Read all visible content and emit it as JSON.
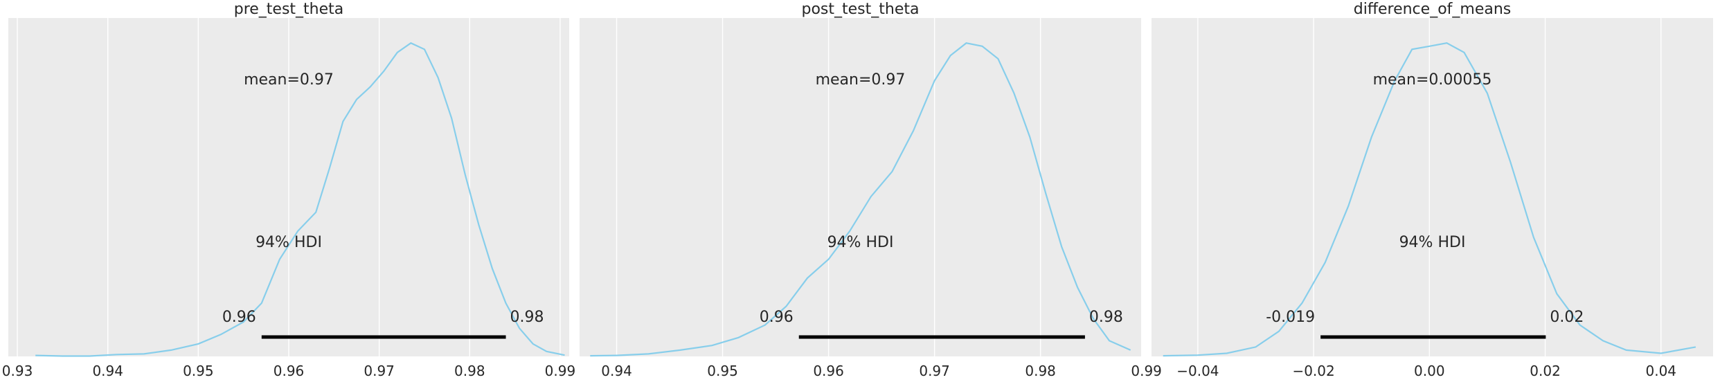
{
  "chart_data": [
    {
      "type": "line",
      "title": "pre_test_theta",
      "xlim": [
        0.929,
        0.991
      ],
      "ylim": [
        0,
        1.08
      ],
      "xticks": [
        0.93,
        0.94,
        0.95,
        0.96,
        0.97,
        0.98,
        0.99
      ],
      "xtick_labels": [
        "0.93",
        "0.94",
        "0.95",
        "0.96",
        "0.97",
        "0.98",
        "0.99"
      ],
      "x": [
        0.932,
        0.935,
        0.938,
        0.941,
        0.944,
        0.947,
        0.95,
        0.9525,
        0.955,
        0.957,
        0.959,
        0.961,
        0.963,
        0.9645,
        0.966,
        0.9675,
        0.969,
        0.9705,
        0.972,
        0.9735,
        0.975,
        0.9765,
        0.978,
        0.9795,
        0.981,
        0.9825,
        0.984,
        0.9855,
        0.987,
        0.9885,
        0.9905
      ],
      "y": [
        0.003,
        0.001,
        0.001,
        0.006,
        0.008,
        0.02,
        0.04,
        0.07,
        0.11,
        0.17,
        0.31,
        0.4,
        0.46,
        0.6,
        0.75,
        0.82,
        0.86,
        0.91,
        0.97,
        1.0,
        0.98,
        0.89,
        0.76,
        0.58,
        0.42,
        0.28,
        0.17,
        0.09,
        0.04,
        0.016,
        0.004
      ],
      "mean_label": "mean=0.97",
      "hdi_label": "94% HDI",
      "hdi": [
        0.957,
        0.984
      ],
      "hdi_low_label": "0.96",
      "hdi_high_label": "0.98",
      "line_color": "#87ceeb"
    },
    {
      "type": "line",
      "title": "post_test_theta",
      "xlim": [
        0.9365,
        0.9895
      ],
      "ylim": [
        0,
        1.08
      ],
      "xticks": [
        0.94,
        0.95,
        0.96,
        0.97,
        0.98,
        0.99
      ],
      "xtick_labels": [
        "0.94",
        "0.95",
        "0.96",
        "0.97",
        "0.98",
        "0.99"
      ],
      "x": [
        0.9375,
        0.94,
        0.943,
        0.946,
        0.949,
        0.9515,
        0.954,
        0.956,
        0.958,
        0.96,
        0.962,
        0.964,
        0.966,
        0.968,
        0.97,
        0.9715,
        0.973,
        0.9745,
        0.976,
        0.9775,
        0.979,
        0.9805,
        0.982,
        0.9835,
        0.985,
        0.9865,
        0.9885
      ],
      "y": [
        0.002,
        0.003,
        0.008,
        0.02,
        0.035,
        0.06,
        0.1,
        0.16,
        0.25,
        0.31,
        0.4,
        0.51,
        0.59,
        0.72,
        0.88,
        0.96,
        1.0,
        0.99,
        0.95,
        0.84,
        0.7,
        0.52,
        0.35,
        0.22,
        0.12,
        0.05,
        0.02
      ],
      "mean_label": "mean=0.97",
      "hdi_label": "94% HDI",
      "hdi": [
        0.9572,
        0.9842
      ],
      "hdi_low_label": "0.96",
      "hdi_high_label": "0.98",
      "line_color": "#87ceeb"
    },
    {
      "type": "line",
      "title": "difference_of_means",
      "xlim": [
        -0.048,
        0.049
      ],
      "ylim": [
        0,
        1.08
      ],
      "xticks": [
        -0.04,
        -0.02,
        0.0,
        0.02,
        0.04
      ],
      "xtick_labels": [
        "−0.04",
        "−0.02",
        "0.00",
        "0.02",
        "0.04"
      ],
      "x": [
        -0.046,
        -0.04,
        -0.035,
        -0.03,
        -0.026,
        -0.022,
        -0.018,
        -0.014,
        -0.01,
        -0.006,
        -0.003,
        0.0,
        0.003,
        0.006,
        0.01,
        0.014,
        0.018,
        0.022,
        0.026,
        0.03,
        0.034,
        0.04,
        0.046
      ],
      "y": [
        0.002,
        0.004,
        0.01,
        0.03,
        0.08,
        0.17,
        0.3,
        0.48,
        0.7,
        0.88,
        0.98,
        0.99,
        1.0,
        0.97,
        0.84,
        0.62,
        0.38,
        0.2,
        0.1,
        0.05,
        0.02,
        0.01,
        0.03
      ],
      "mean_label": "mean=0.00055",
      "hdi_label": "94% HDI",
      "hdi": [
        -0.0188,
        0.0201
      ],
      "hdi_low_label": "-0.019",
      "hdi_high_label": "0.02",
      "line_color": "#87ceeb"
    }
  ]
}
